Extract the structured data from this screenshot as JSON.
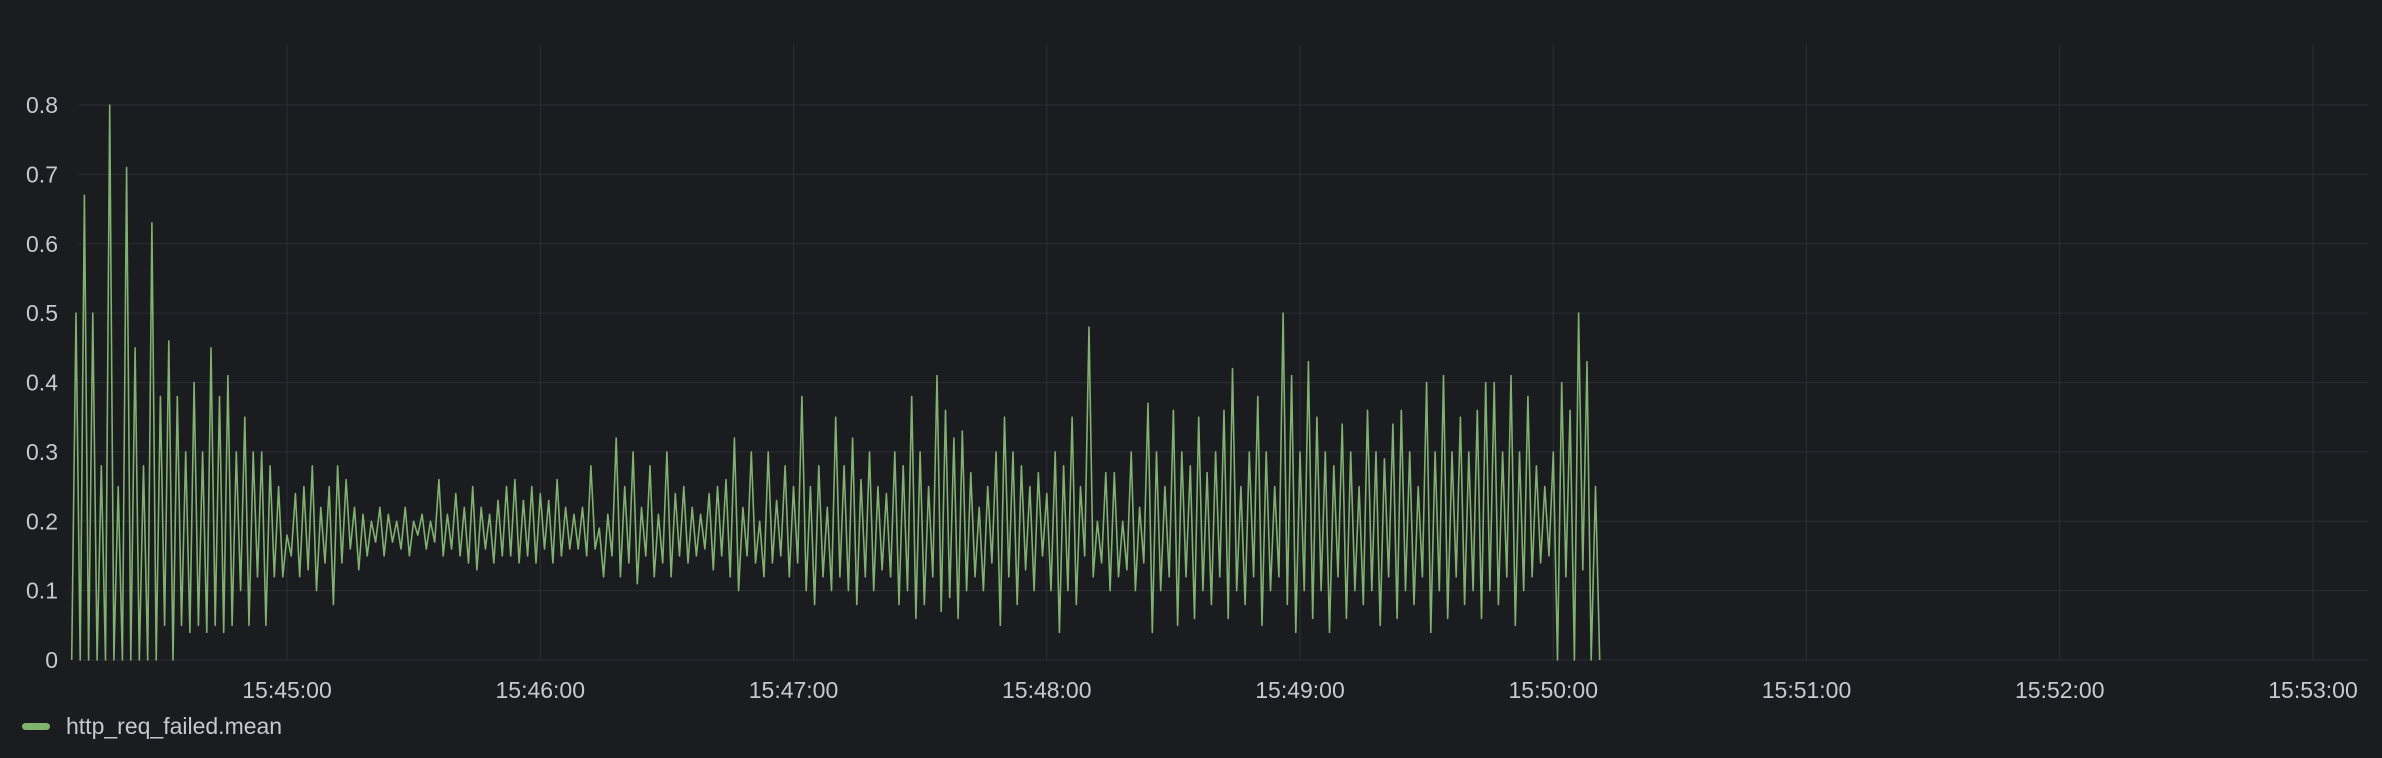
{
  "colors": {
    "background": "#1b1c20",
    "grid": "#2c2e33",
    "series": "#7eb26d",
    "text": "#c7c9cf"
  },
  "chart_data": {
    "type": "line",
    "title": "",
    "xlabel": "",
    "ylabel": "",
    "ylim": [
      0,
      0.8
    ],
    "grid": true,
    "legend_placement": "bottom-left",
    "x_ticks": [
      "15:45:00",
      "15:46:00",
      "15:47:00",
      "15:48:00",
      "15:49:00",
      "15:50:00",
      "15:51:00",
      "15:52:00",
      "15:53:00"
    ],
    "y_ticks": [
      "0",
      "0.1",
      "0.2",
      "0.3",
      "0.4",
      "0.5",
      "0.6",
      "0.7",
      "0.8"
    ],
    "x_range": [
      "15:44:09",
      "15:53:15"
    ],
    "sample_interval_seconds": 1,
    "series": [
      {
        "name": "http_req_failed.mean",
        "color": "#7eb26d",
        "start_time": "15:44:09",
        "values": [
          0.0,
          0.5,
          0.0,
          0.67,
          0.0,
          0.5,
          0.0,
          0.28,
          0.0,
          0.8,
          0.0,
          0.25,
          0.0,
          0.71,
          0.0,
          0.45,
          0.0,
          0.28,
          0.0,
          0.63,
          0.0,
          0.38,
          0.05,
          0.46,
          0.0,
          0.38,
          0.05,
          0.3,
          0.04,
          0.4,
          0.05,
          0.3,
          0.04,
          0.45,
          0.05,
          0.38,
          0.04,
          0.41,
          0.05,
          0.3,
          0.1,
          0.35,
          0.05,
          0.3,
          0.12,
          0.3,
          0.05,
          0.28,
          0.12,
          0.25,
          0.12,
          0.18,
          0.15,
          0.24,
          0.12,
          0.25,
          0.13,
          0.28,
          0.1,
          0.22,
          0.14,
          0.25,
          0.08,
          0.28,
          0.14,
          0.26,
          0.16,
          0.22,
          0.13,
          0.21,
          0.15,
          0.2,
          0.17,
          0.22,
          0.15,
          0.21,
          0.17,
          0.2,
          0.16,
          0.22,
          0.15,
          0.2,
          0.18,
          0.21,
          0.16,
          0.2,
          0.17,
          0.26,
          0.15,
          0.21,
          0.16,
          0.24,
          0.15,
          0.22,
          0.14,
          0.25,
          0.13,
          0.22,
          0.16,
          0.21,
          0.14,
          0.23,
          0.15,
          0.25,
          0.15,
          0.26,
          0.14,
          0.23,
          0.15,
          0.25,
          0.14,
          0.24,
          0.16,
          0.23,
          0.14,
          0.26,
          0.15,
          0.22,
          0.16,
          0.21,
          0.16,
          0.22,
          0.15,
          0.28,
          0.16,
          0.19,
          0.12,
          0.21,
          0.15,
          0.32,
          0.12,
          0.25,
          0.14,
          0.3,
          0.11,
          0.22,
          0.15,
          0.28,
          0.12,
          0.21,
          0.14,
          0.3,
          0.12,
          0.24,
          0.15,
          0.25,
          0.14,
          0.22,
          0.15,
          0.21,
          0.16,
          0.24,
          0.13,
          0.25,
          0.15,
          0.26,
          0.12,
          0.32,
          0.1,
          0.22,
          0.15,
          0.3,
          0.14,
          0.2,
          0.12,
          0.3,
          0.14,
          0.23,
          0.15,
          0.28,
          0.12,
          0.25,
          0.14,
          0.38,
          0.1,
          0.25,
          0.08,
          0.28,
          0.12,
          0.22,
          0.1,
          0.35,
          0.12,
          0.28,
          0.1,
          0.32,
          0.08,
          0.26,
          0.12,
          0.3,
          0.1,
          0.25,
          0.13,
          0.24,
          0.12,
          0.3,
          0.08,
          0.28,
          0.1,
          0.38,
          0.06,
          0.3,
          0.08,
          0.25,
          0.12,
          0.41,
          0.07,
          0.36,
          0.09,
          0.32,
          0.06,
          0.33,
          0.1,
          0.27,
          0.12,
          0.22,
          0.1,
          0.25,
          0.14,
          0.3,
          0.05,
          0.35,
          0.12,
          0.3,
          0.08,
          0.28,
          0.13,
          0.25,
          0.1,
          0.27,
          0.15,
          0.24,
          0.1,
          0.3,
          0.04,
          0.28,
          0.1,
          0.35,
          0.08,
          0.25,
          0.15,
          0.48,
          0.12,
          0.2,
          0.14,
          0.27,
          0.1,
          0.27,
          0.12,
          0.2,
          0.13,
          0.3,
          0.1,
          0.22,
          0.14,
          0.37,
          0.04,
          0.3,
          0.1,
          0.25,
          0.12,
          0.36,
          0.05,
          0.3,
          0.12,
          0.28,
          0.06,
          0.35,
          0.1,
          0.27,
          0.08,
          0.3,
          0.12,
          0.36,
          0.06,
          0.42,
          0.1,
          0.25,
          0.08,
          0.3,
          0.12,
          0.38,
          0.05,
          0.3,
          0.1,
          0.25,
          0.12,
          0.5,
          0.08,
          0.41,
          0.04,
          0.3,
          0.1,
          0.43,
          0.06,
          0.35,
          0.1,
          0.3,
          0.04,
          0.28,
          0.12,
          0.34,
          0.06,
          0.3,
          0.1,
          0.25,
          0.08,
          0.36,
          0.1,
          0.3,
          0.05,
          0.29,
          0.12,
          0.34,
          0.06,
          0.36,
          0.1,
          0.3,
          0.08,
          0.25,
          0.12,
          0.4,
          0.04,
          0.3,
          0.1,
          0.41,
          0.06,
          0.3,
          0.12,
          0.35,
          0.08,
          0.3,
          0.1,
          0.36,
          0.06,
          0.4,
          0.1,
          0.4,
          0.08,
          0.3,
          0.12,
          0.41,
          0.05,
          0.3,
          0.1,
          0.38,
          0.12,
          0.28,
          0.14,
          0.25,
          0.15,
          0.3,
          0.0,
          0.4,
          0.12,
          0.36,
          0.0,
          0.5,
          0.13,
          0.43,
          0.0,
          0.25,
          0.0
        ]
      }
    ]
  },
  "legend": {
    "items": [
      {
        "label": "http_req_failed.mean",
        "color": "#7eb26d"
      }
    ]
  }
}
